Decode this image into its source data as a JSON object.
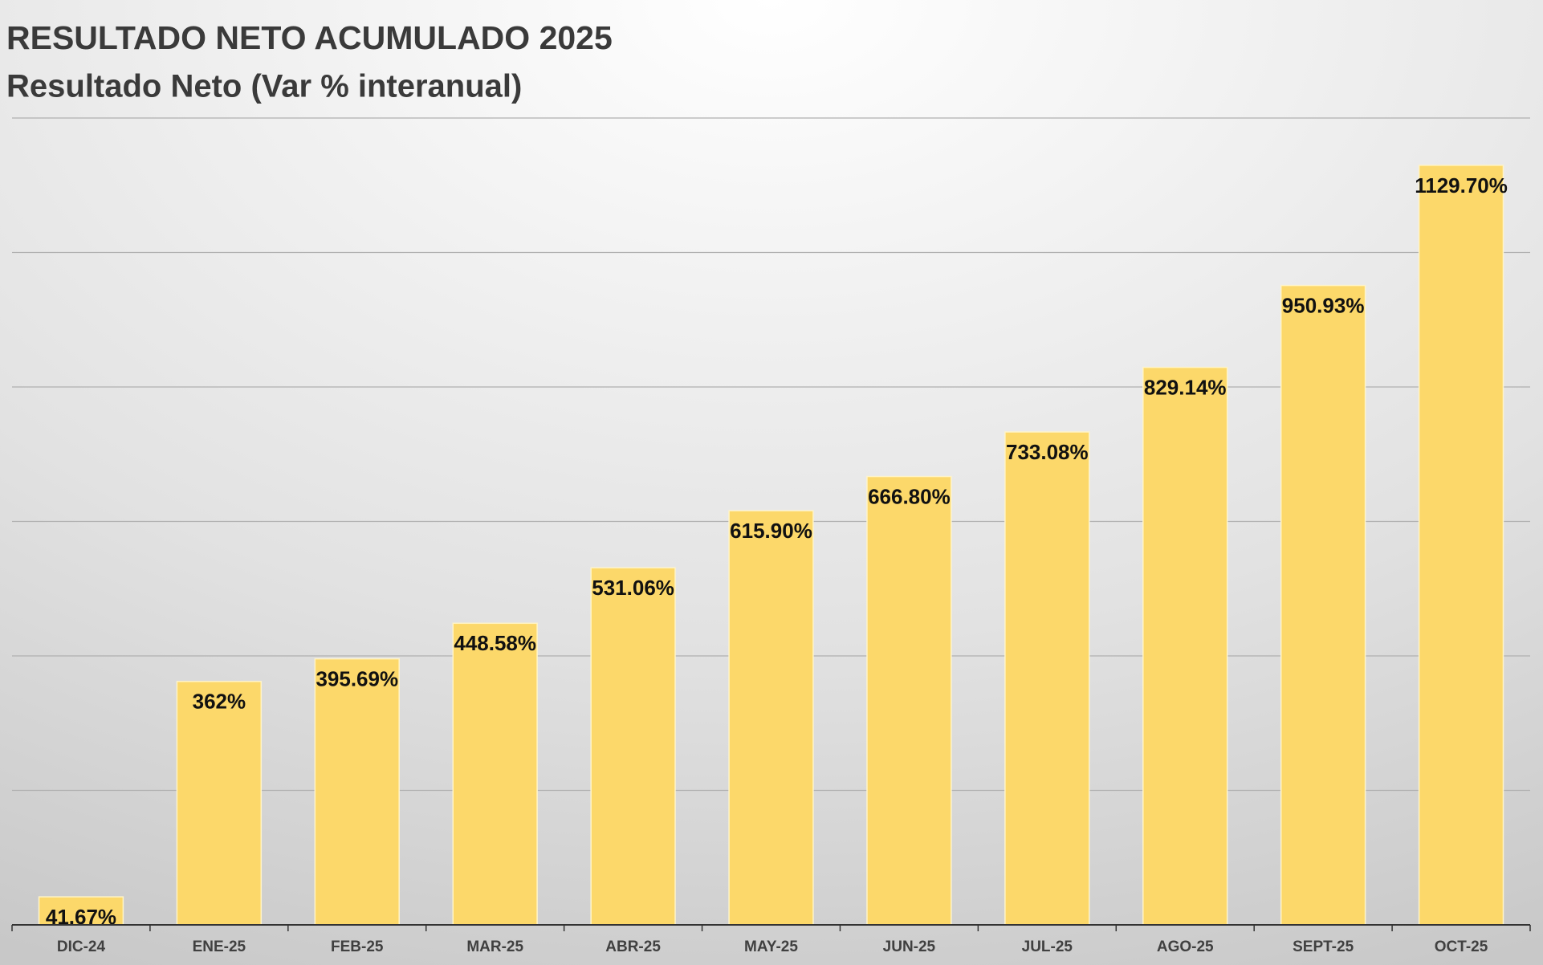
{
  "chart_data": {
    "type": "bar",
    "title": "RESULTADO NETO ACUMULADO 2025",
    "subtitle": "Resultado Neto (Var % interanual)",
    "categories": [
      "DIC-24",
      "ENE-25",
      "FEB-25",
      "MAR-25",
      "ABR-25",
      "MAY-25",
      "JUN-25",
      "JUL-25",
      "AGO-25",
      "SEPT-25",
      "OCT-25"
    ],
    "values": [
      41.67,
      362,
      395.69,
      448.58,
      531.06,
      615.9,
      666.8,
      733.08,
      829.14,
      950.93,
      1129.7
    ],
    "value_labels": [
      "41.67%",
      "362%",
      "395.69%",
      "448.58%",
      "531.06%",
      "615.90%",
      "666.80%",
      "733.08%",
      "829.14%",
      "950.93%",
      "1129.70%"
    ],
    "color": "#fcd86a",
    "ylim": [
      0,
      1200
    ],
    "yticks": [
      0,
      200,
      400,
      600,
      800,
      1000,
      1200
    ],
    "grid": true
  }
}
